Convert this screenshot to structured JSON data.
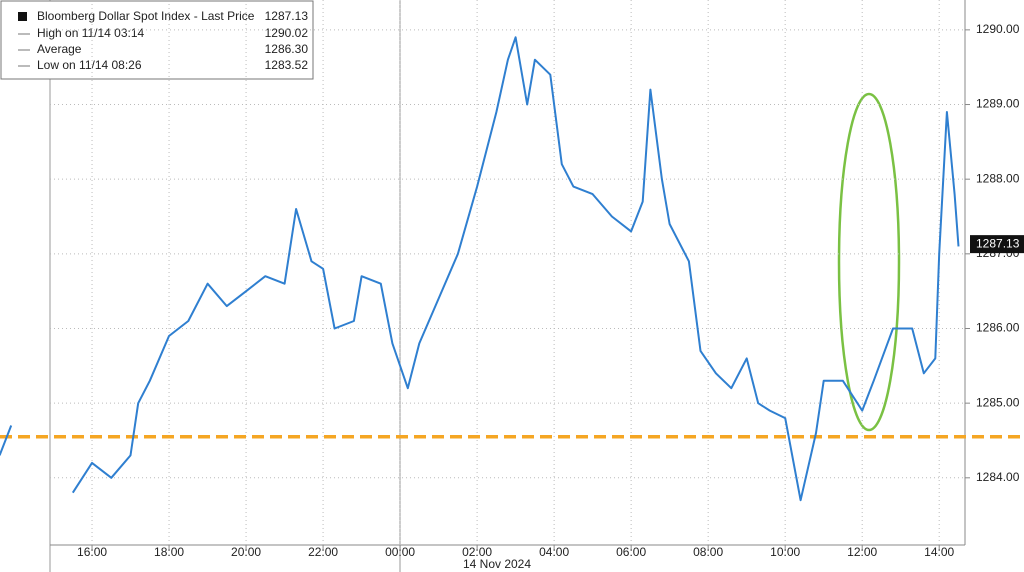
{
  "chart_data": {
    "type": "line",
    "series": [
      {
        "name": "Bloomberg Dollar Spot Index - Last Price",
        "color": "#2f7fd0",
        "x": [
          13.6,
          13.9,
          null,
          15.5,
          16.0,
          16.5,
          17.0,
          17.2,
          17.5,
          18.0,
          18.5,
          19.0,
          19.5,
          20.0,
          20.5,
          21.0,
          21.3,
          21.7,
          22.0,
          22.3,
          22.8,
          23.0,
          23.5,
          23.8,
          24.2,
          24.5,
          25.0,
          25.5,
          26.0,
          26.5,
          26.8,
          27.0,
          27.3,
          27.5,
          27.9,
          28.2,
          28.5,
          29.0,
          29.5,
          30.0,
          30.3,
          30.5,
          30.8,
          31.0,
          31.5,
          31.8,
          32.2,
          32.6,
          33.0,
          33.3,
          33.6,
          34.0,
          34.4,
          34.8,
          35.0,
          35.5,
          36.0,
          36.3,
          36.8,
          37.3,
          37.6,
          37.9,
          38.0,
          38.2,
          38.4,
          38.5
        ],
        "values": [
          1284.3,
          1284.7,
          null,
          1283.8,
          1284.2,
          1284.0,
          1284.3,
          1285.0,
          1285.3,
          1285.9,
          1286.1,
          1286.6,
          1286.3,
          1286.5,
          1286.7,
          1286.6,
          1287.6,
          1286.9,
          1286.8,
          1286.0,
          1286.1,
          1286.7,
          1286.6,
          1285.8,
          1285.2,
          1285.8,
          1286.4,
          1287.0,
          1287.9,
          1288.9,
          1289.6,
          1289.9,
          1289.0,
          1289.6,
          1289.4,
          1288.2,
          1287.9,
          1287.8,
          1287.5,
          1287.3,
          1287.7,
          1289.2,
          1288.0,
          1287.4,
          1286.9,
          1285.7,
          1285.4,
          1285.2,
          1285.6,
          1285.0,
          1284.9,
          1284.8,
          1283.7,
          1284.6,
          1285.3,
          1285.3,
          1284.9,
          1285.3,
          1286.0,
          1286.0,
          1285.4,
          1285.6,
          1287.0,
          1288.9,
          1287.8,
          1287.1
        ]
      }
    ],
    "last_value": 1287.13,
    "stats": {
      "labels": [
        "High on 11/14 03:14",
        "Average",
        "Low on 11/14 08:26"
      ],
      "values": [
        1290.02,
        1286.3,
        1283.52
      ],
      "value_labels": [
        "1290.02",
        "1286.30",
        "1283.52"
      ]
    },
    "reference_line": 1284.55,
    "xlabel": "14 Nov 2024",
    "xlim": [
      13.61,
      38.67
    ],
    "xticks": [
      {
        "value": 16,
        "label": "16:00"
      },
      {
        "value": 18,
        "label": "18:00"
      },
      {
        "value": 20,
        "label": "20:00"
      },
      {
        "value": 22,
        "label": "22:00"
      },
      {
        "value": 24,
        "label": "00:00"
      },
      {
        "value": 26,
        "label": "02:00"
      },
      {
        "value": 28,
        "label": "04:00"
      },
      {
        "value": 30,
        "label": "06:00"
      },
      {
        "value": 32,
        "label": "08:00"
      },
      {
        "value": 34,
        "label": "10:00"
      },
      {
        "value": 36,
        "label": "12:00"
      },
      {
        "value": 38,
        "label": "14:00"
      }
    ],
    "ylim": [
      1283.1,
      1290.4
    ],
    "yticks": [
      {
        "value": 1284,
        "label": "1284.00"
      },
      {
        "value": 1285,
        "label": "1285.00"
      },
      {
        "value": 1286,
        "label": "1286.00"
      },
      {
        "value": 1287,
        "label": "1287.00"
      },
      {
        "value": 1288,
        "label": "1288.00"
      },
      {
        "value": 1289,
        "label": "1289.00"
      },
      {
        "value": 1290,
        "label": "1290.00"
      }
    ],
    "grid": true
  }
}
